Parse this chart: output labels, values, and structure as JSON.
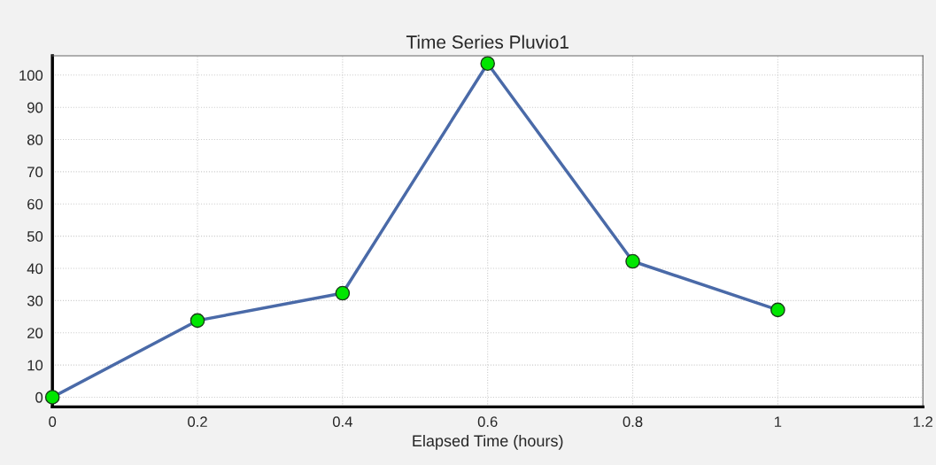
{
  "chart_data": {
    "type": "line",
    "title": "Time Series Pluvio1",
    "xlabel": "Elapsed Time (hours)",
    "x": [
      0,
      0.2,
      0.4,
      0.6,
      0.8,
      1.0
    ],
    "series": [
      {
        "color": "#4a6aa8",
        "colors": [
          "#00e600",
          "#00e600",
          "#00e600",
          "#00e600",
          "#00e600",
          "#00e600"
        ],
        "values": [
          0,
          23.8,
          32.3,
          103.6,
          42.2,
          27.1
        ]
      }
    ],
    "marker": "circle",
    "xlim": [
      0,
      1.2
    ],
    "xticks": [
      0,
      0.2,
      0.4,
      0.6,
      0.8,
      1,
      1.2
    ],
    "ylim": [
      -3,
      106
    ],
    "yticks": [
      0,
      10,
      20,
      30,
      40,
      50,
      60,
      70,
      80,
      90,
      100
    ],
    "grid": true,
    "legend": false
  }
}
